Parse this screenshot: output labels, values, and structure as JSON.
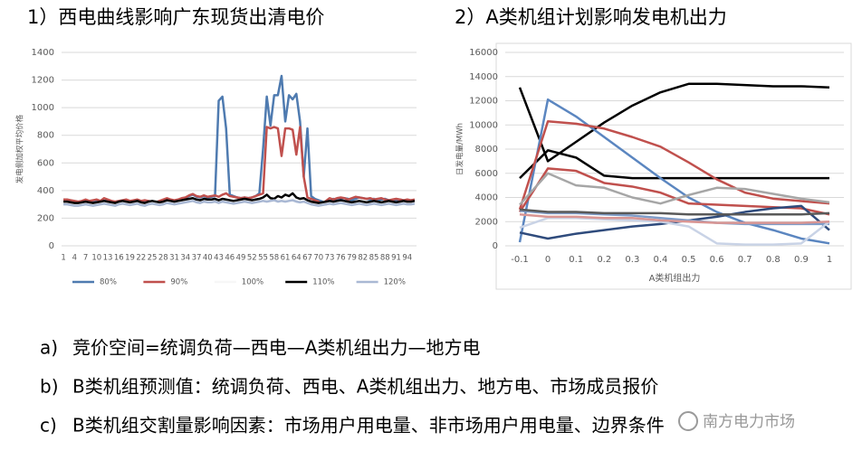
{
  "chart_data": [
    {
      "type": "line",
      "title": "1）西电曲线影响广东现货出清电价",
      "ylabel": "发电侧加权平均价格",
      "categories": [
        "1",
        null,
        null,
        "4",
        null,
        null,
        "7",
        null,
        null,
        "10",
        null,
        null,
        "13",
        null,
        null,
        "16",
        null,
        null,
        "19",
        null,
        null,
        "22",
        null,
        null,
        "25",
        null,
        null,
        "28",
        null,
        null,
        "31",
        null,
        null,
        "34",
        null,
        null,
        "37",
        null,
        null,
        "40",
        null,
        null,
        "43",
        null,
        null,
        "46",
        null,
        null,
        "49",
        null,
        null,
        "52",
        null,
        null,
        "55",
        null,
        null,
        "58",
        null,
        null,
        "61",
        null,
        null,
        "64",
        null,
        null,
        "67",
        null,
        null,
        "70",
        null,
        null,
        "73",
        null,
        null,
        "76",
        null,
        null,
        "79",
        null,
        null,
        "82",
        null,
        null,
        "85",
        null,
        null,
        "88",
        null,
        null,
        "91",
        null,
        null,
        "94",
        null,
        null
      ],
      "ylim": [
        0,
        1400
      ],
      "yticks": [
        0,
        200,
        400,
        600,
        800,
        1000,
        1200,
        1400
      ],
      "grid": true,
      "series": [
        {
          "name": "80%",
          "color": "#4f7bb0",
          "values": [
            330,
            330,
            325,
            320,
            315,
            320,
            330,
            320,
            325,
            330,
            320,
            325,
            330,
            320,
            315,
            320,
            325,
            330,
            320,
            325,
            330,
            320,
            325,
            320,
            315,
            310,
            320,
            330,
            340,
            330,
            325,
            330,
            340,
            345,
            360,
            370,
            355,
            350,
            360,
            350,
            355,
            360,
            1050,
            1080,
            850,
            370,
            360,
            350,
            345,
            350,
            345,
            350,
            360,
            380,
            700,
            1080,
            870,
            1090,
            1090,
            1230,
            900,
            1090,
            1060,
            1100,
            900,
            500,
            850,
            360,
            340,
            330,
            320,
            300,
            320,
            340,
            330,
            340,
            345,
            340,
            330,
            340,
            350,
            345,
            340,
            335,
            340,
            330,
            335,
            340,
            330,
            325,
            330,
            335,
            330,
            325,
            330,
            330
          ]
        },
        {
          "name": "90%",
          "color": "#c0504d",
          "values": [
            335,
            335,
            330,
            325,
            320,
            325,
            335,
            325,
            330,
            335,
            325,
            345,
            335,
            325,
            320,
            325,
            330,
            335,
            325,
            330,
            335,
            325,
            330,
            325,
            320,
            315,
            325,
            335,
            345,
            335,
            330,
            335,
            345,
            350,
            365,
            375,
            360,
            355,
            365,
            355,
            360,
            365,
            355,
            370,
            380,
            360,
            355,
            350,
            345,
            350,
            345,
            350,
            360,
            370,
            380,
            860,
            850,
            860,
            850,
            650,
            850,
            850,
            840,
            660,
            860,
            500,
            350,
            340,
            330,
            320,
            300,
            325,
            345,
            335,
            345,
            350,
            345,
            335,
            345,
            355,
            350,
            345,
            340,
            345,
            335,
            340,
            345,
            335,
            330,
            335,
            340,
            335,
            330,
            335,
            330,
            335
          ]
        },
        {
          "name": "100%",
          "color": "#f7f7f7",
          "values": [
            310,
            310,
            305,
            300,
            300,
            305,
            310,
            305,
            300,
            305,
            310,
            315,
            310,
            305,
            300,
            310,
            315,
            310,
            305,
            310,
            315,
            305,
            300,
            310,
            315,
            310,
            305,
            310,
            320,
            315,
            310,
            315,
            320,
            325,
            330,
            335,
            325,
            320,
            330,
            325,
            325,
            330,
            320,
            330,
            325,
            320,
            315,
            320,
            325,
            330,
            325,
            320,
            325,
            330,
            335,
            330,
            335,
            340,
            330,
            335,
            330,
            335,
            340,
            330,
            325,
            330,
            320,
            310,
            305,
            300,
            305,
            310,
            315,
            310,
            315,
            320,
            315,
            310,
            305,
            310,
            315,
            310,
            305,
            310,
            315,
            310,
            305,
            310,
            315,
            310,
            305,
            310,
            315,
            310,
            310,
            315
          ]
        },
        {
          "name": "110%",
          "color": "#000000",
          "values": [
            320,
            320,
            315,
            310,
            310,
            315,
            320,
            315,
            310,
            315,
            320,
            325,
            320,
            315,
            310,
            320,
            325,
            320,
            315,
            320,
            325,
            315,
            310,
            320,
            325,
            320,
            315,
            320,
            330,
            325,
            320,
            325,
            330,
            335,
            340,
            345,
            335,
            330,
            340,
            335,
            335,
            340,
            330,
            340,
            335,
            330,
            325,
            330,
            335,
            340,
            335,
            330,
            335,
            340,
            350,
            370,
            345,
            340,
            360,
            350,
            370,
            360,
            380,
            350,
            340,
            345,
            330,
            320,
            315,
            310,
            315,
            320,
            325,
            320,
            325,
            330,
            325,
            320,
            315,
            320,
            325,
            320,
            315,
            320,
            325,
            320,
            315,
            320,
            325,
            320,
            315,
            320,
            325,
            320,
            320,
            325
          ]
        },
        {
          "name": "120%",
          "color": "#a9b8d4",
          "values": [
            300,
            300,
            295,
            290,
            290,
            295,
            300,
            295,
            290,
            295,
            300,
            305,
            300,
            295,
            290,
            300,
            305,
            300,
            295,
            300,
            305,
            295,
            290,
            300,
            305,
            300,
            295,
            300,
            310,
            305,
            300,
            305,
            310,
            315,
            320,
            325,
            315,
            310,
            320,
            315,
            315,
            320,
            310,
            320,
            315,
            310,
            305,
            310,
            315,
            320,
            315,
            310,
            315,
            320,
            325,
            320,
            325,
            330,
            320,
            325,
            320,
            325,
            330,
            320,
            315,
            320,
            310,
            300,
            295,
            290,
            295,
            300,
            305,
            300,
            305,
            310,
            305,
            300,
            295,
            300,
            305,
            300,
            295,
            300,
            305,
            300,
            295,
            300,
            305,
            300,
            295,
            300,
            305,
            300,
            300,
            305
          ]
        }
      ]
    },
    {
      "type": "line",
      "title": "2）A类机组计划影响发电机出力",
      "ylabel": "日发电量/MWh",
      "xlabel": "A类机组出力",
      "x": [
        -0.1,
        0,
        0.1,
        0.2,
        0.3,
        0.4,
        0.5,
        0.6,
        0.7,
        0.8,
        0.9,
        1
      ],
      "xlim": [
        -0.1,
        1
      ],
      "xticks": [
        -0.1,
        0,
        0.1,
        0.2,
        0.3,
        0.4,
        0.5,
        0.6,
        0.7,
        0.8,
        0.9,
        1
      ],
      "ylim": [
        0,
        16000
      ],
      "yticks": [
        0,
        2000,
        4000,
        6000,
        8000,
        10000,
        12000,
        14000,
        16000
      ],
      "grid": true,
      "series": [
        {
          "color": "#000000",
          "values": [
            13100,
            7000,
            8600,
            10200,
            11600,
            12700,
            13400,
            13400,
            13300,
            13200,
            13200,
            13100
          ]
        },
        {
          "color": "#000000",
          "values": [
            5600,
            7900,
            7300,
            5800,
            5600,
            5600,
            5600,
            5600,
            5600,
            5600,
            5600,
            5600
          ]
        },
        {
          "color": "#5b86c0",
          "values": [
            300,
            12100,
            10700,
            9000,
            7300,
            5600,
            4000,
            2800,
            1900,
            1300,
            600,
            200
          ]
        },
        {
          "color": "#c0504d",
          "values": [
            3000,
            10300,
            10100,
            9700,
            9000,
            8200,
            6900,
            5500,
            4400,
            3900,
            3700,
            3500
          ]
        },
        {
          "color": "#c0504d",
          "values": [
            2800,
            6400,
            6200,
            5200,
            4900,
            4400,
            3500,
            3400,
            3300,
            3200,
            3100,
            2600
          ]
        },
        {
          "color": "#a6a6a6",
          "values": [
            3400,
            6000,
            5000,
            4800,
            4000,
            3500,
            4200,
            4800,
            4700,
            4300,
            3900,
            3600
          ]
        },
        {
          "color": "#2f4b7c",
          "values": [
            1100,
            600,
            1000,
            1300,
            1600,
            1800,
            2100,
            2400,
            2800,
            3100,
            3300,
            1300
          ]
        },
        {
          "color": "#7f9cc8",
          "values": [
            2900,
            2700,
            2700,
            2600,
            2500,
            2300,
            2100,
            1900,
            1800,
            1800,
            1800,
            1800
          ]
        },
        {
          "color": "#595959",
          "values": [
            3000,
            2800,
            2800,
            2700,
            2700,
            2700,
            2600,
            2600,
            2600,
            2600,
            2600,
            2700
          ]
        },
        {
          "color": "#c9d3e6",
          "values": [
            1500,
            2300,
            2300,
            2200,
            2100,
            2000,
            1600,
            200,
            100,
            100,
            200,
            2000
          ]
        },
        {
          "color": "#d99694",
          "values": [
            2600,
            2400,
            2400,
            2300,
            2300,
            2100,
            2000,
            1900,
            1900,
            1900,
            1900,
            2000
          ]
        }
      ]
    }
  ],
  "bullets": [
    {
      "marker": "a)",
      "text": "竞价空间=统调负荷—西电—A类机组出力—地方电"
    },
    {
      "marker": "b)",
      "text": "B类机组预测值：统调负荷、西电、A类机组出力、地方电、市场成员报价"
    },
    {
      "marker": "c)",
      "text": "B类机组交割量影响因素：市场用户用电量、非市场用户用电量、边界条件"
    }
  ],
  "watermark": "南方电力市场"
}
